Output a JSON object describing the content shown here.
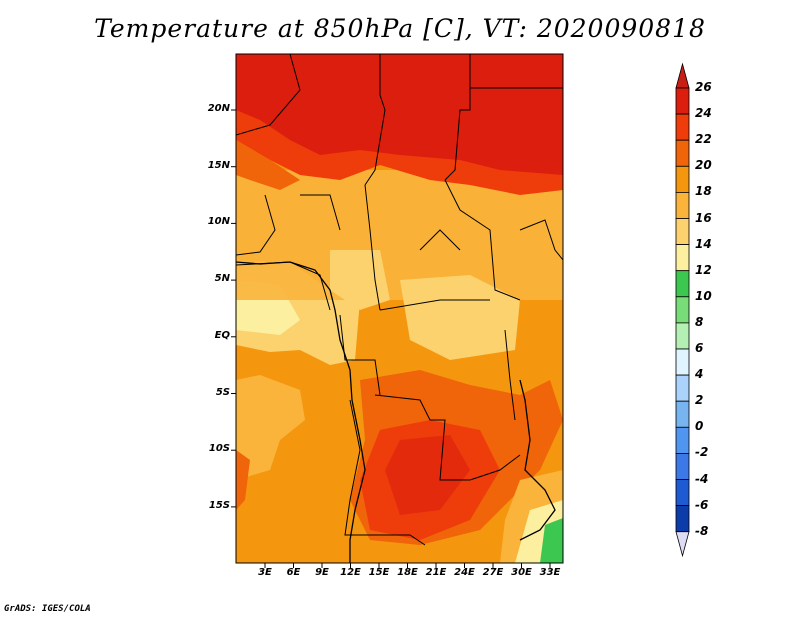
{
  "title": "Temperature at 850hPa [C], VT: 2020090818",
  "credit": "GrADS: IGES/COLA",
  "map": {
    "lat_labels": [
      "20N",
      "15N",
      "10N",
      "5N",
      "EQ",
      "5S",
      "10S",
      "15S"
    ],
    "lon_labels": [
      "3E",
      "6E",
      "9E",
      "12E",
      "15E",
      "18E",
      "21E",
      "24E",
      "27E",
      "30E",
      "33E"
    ]
  },
  "colorbar": {
    "labels": [
      "26",
      "24",
      "22",
      "20",
      "18",
      "16",
      "14",
      "12",
      "10",
      "8",
      "6",
      "4",
      "2",
      "0",
      "-2",
      "-4",
      "-6",
      "-8"
    ],
    "colors": [
      "#dc1e0f",
      "#ee3c0a",
      "#f0640a",
      "#f5960f",
      "#fab43c",
      "#fcd26e",
      "#fcf0a0",
      "#3cc850",
      "#78dc78",
      "#b4f0b4",
      "#e0f4ff",
      "#aad2fa",
      "#78b4f0",
      "#5096f0",
      "#3c78e6",
      "#1e5ad2",
      "#0c3caa",
      "#0a1478"
    ],
    "over_color": "#c81e14",
    "under_color": "#dcdcf5"
  }
}
